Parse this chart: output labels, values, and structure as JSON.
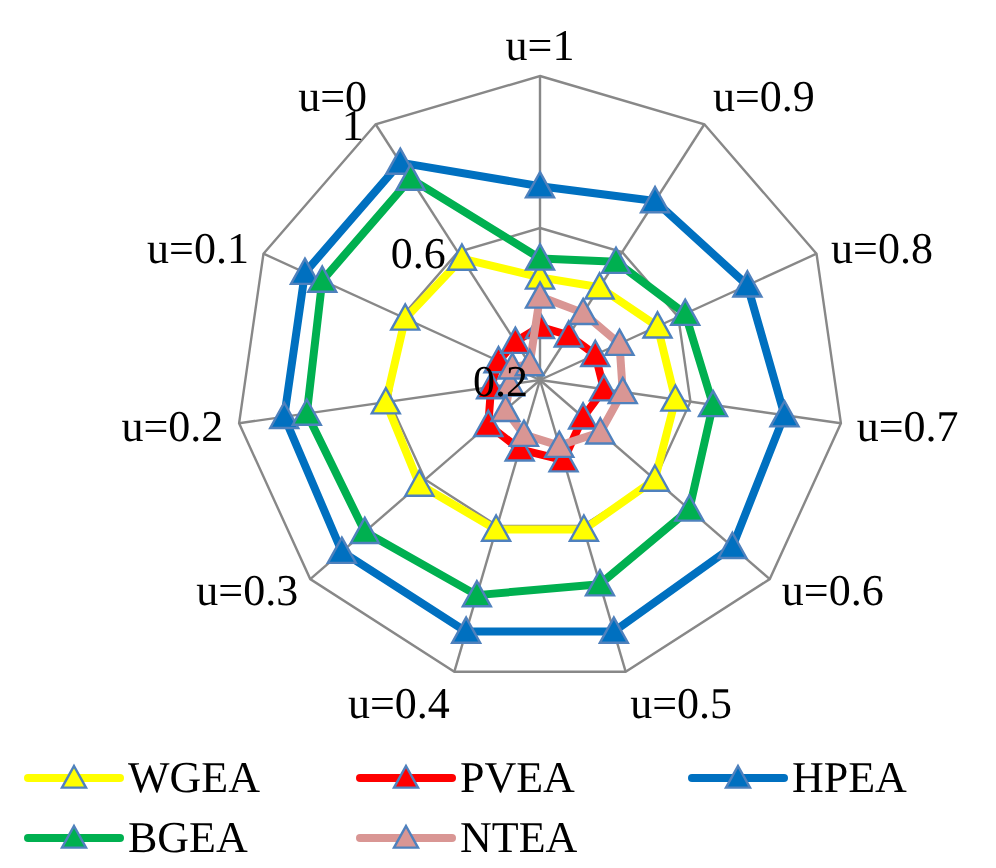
{
  "chart_data": {
    "type": "radar",
    "categories": [
      "u=1",
      "u=0.9",
      "u=0.8",
      "u=0.7",
      "u=0.6",
      "u=0.5",
      "u=0.4",
      "u=0.3",
      "u=0.2",
      "u=0.1",
      "u=0"
    ],
    "ylim": [
      0.2,
      1
    ],
    "yticks": [
      0.2,
      0.6,
      1
    ],
    "grid": true,
    "legend": "bottom",
    "marker": "triangle",
    "series": [
      {
        "name": "WGEA",
        "color": "#ffff00",
        "values": [
          0.47,
          0.49,
          0.54,
          0.56,
          0.6,
          0.61,
          0.61,
          0.62,
          0.61,
          0.59,
          0.58
        ]
      },
      {
        "name": "PVEA",
        "color": "#ff0000",
        "values": [
          0.34,
          0.34,
          0.36,
          0.37,
          0.35,
          0.42,
          0.39,
          0.38,
          0.33,
          0.32,
          0.32
        ]
      },
      {
        "name": "HPEA",
        "color": "#0070c0",
        "values": [
          0.71,
          0.76,
          0.8,
          0.85,
          0.87,
          0.89,
          0.89,
          0.89,
          0.88,
          0.88,
          0.88
        ]
      },
      {
        "name": "BGEA",
        "color": "#00b050",
        "values": [
          0.52,
          0.57,
          0.62,
          0.66,
          0.72,
          0.76,
          0.79,
          0.81,
          0.82,
          0.83,
          0.83
        ]
      },
      {
        "name": "NTEA",
        "color": "#d99694",
        "values": [
          0.42,
          0.41,
          0.43,
          0.42,
          0.41,
          0.38,
          0.35,
          0.32,
          0.28,
          0.28,
          0.25
        ]
      }
    ]
  }
}
